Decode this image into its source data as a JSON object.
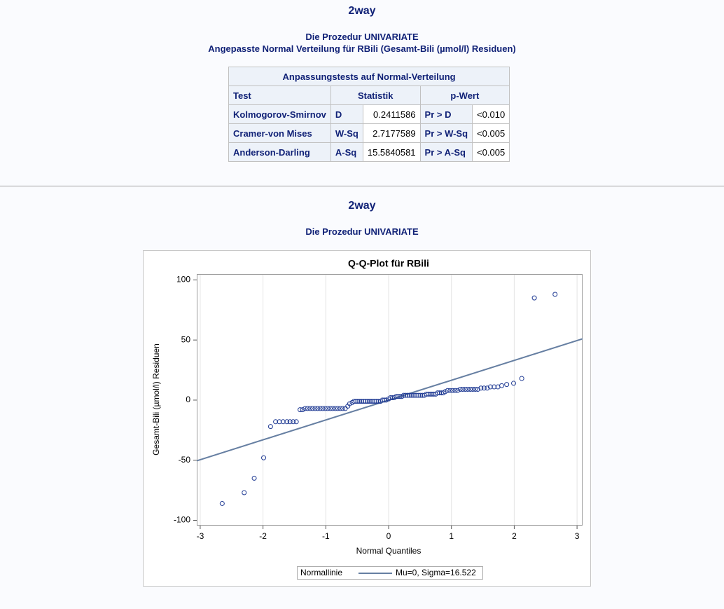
{
  "header": {
    "title": "2way",
    "procedure": "Die Prozedur UNIVARIATE",
    "subtitle": "Angepasste Normal Verteilung für RBili (Gesamt-Bili (µmol/l) Residuen)"
  },
  "table": {
    "title": "Anpassungstests auf Normal-Verteilung",
    "columns": [
      "Test",
      "Statistik",
      "p-Wert"
    ],
    "rows": [
      [
        "Kolmogorov-Smirnov",
        "D",
        "0.2411586",
        "Pr > D",
        "<0.010"
      ],
      [
        "Cramer-von Mises",
        "W-Sq",
        "2.7177589",
        "Pr > W-Sq",
        "<0.005"
      ],
      [
        "Anderson-Darling",
        "A-Sq",
        "15.5840581",
        "Pr > A-Sq",
        "<0.005"
      ]
    ]
  },
  "header2": {
    "title": "2way",
    "procedure": "Die Prozedur UNIVARIATE"
  },
  "chart_data": {
    "type": "scatter",
    "title": "Q-Q-Plot für RBili",
    "x_label": "Normal Quantiles",
    "y_label": "Gesamt-Bili (µmol/l) Residuen",
    "x": [
      -2.65,
      -2.3,
      -2.14,
      -1.99,
      -1.88,
      -1.8,
      -1.74,
      -1.68,
      -1.62,
      -1.57,
      -1.52,
      -1.47,
      -1.41,
      -1.37,
      -1.33,
      -1.29,
      -1.25,
      -1.21,
      -1.17,
      -1.13,
      -1.09,
      -1.05,
      -1.01,
      -0.97,
      -0.93,
      -0.89,
      -0.85,
      -0.81,
      -0.77,
      -0.73,
      -0.69,
      -0.65,
      -0.62,
      -0.58,
      -0.55,
      -0.52,
      -0.49,
      -0.46,
      -0.43,
      -0.4,
      -0.37,
      -0.34,
      -0.31,
      -0.28,
      -0.25,
      -0.22,
      -0.19,
      -0.16,
      -0.13,
      -0.1,
      -0.07,
      -0.04,
      0.0,
      0.03,
      0.06,
      0.09,
      0.12,
      0.15,
      0.18,
      0.21,
      0.24,
      0.27,
      0.3,
      0.33,
      0.36,
      0.39,
      0.42,
      0.45,
      0.48,
      0.51,
      0.54,
      0.57,
      0.6,
      0.63,
      0.66,
      0.69,
      0.72,
      0.75,
      0.78,
      0.81,
      0.84,
      0.87,
      0.9,
      0.94,
      0.98,
      1.02,
      1.06,
      1.1,
      1.14,
      1.18,
      1.22,
      1.26,
      1.3,
      1.34,
      1.38,
      1.42,
      1.47,
      1.52,
      1.57,
      1.62,
      1.68,
      1.74,
      1.8,
      1.88,
      1.99,
      2.12,
      2.32,
      2.65
    ],
    "values": [
      -86,
      -77,
      -65,
      -48,
      -22,
      -18,
      -18,
      -18,
      -18,
      -18,
      -18,
      -18,
      -8,
      -8,
      -7,
      -7,
      -7,
      -7,
      -7,
      -7,
      -7,
      -7,
      -7,
      -7,
      -7,
      -7,
      -7,
      -7,
      -7,
      -7,
      -7,
      -5,
      -3,
      -2,
      -1,
      -1,
      -1,
      -1,
      -1,
      -1,
      -1,
      -1,
      -1,
      -1,
      -1,
      -1,
      -1,
      -1,
      -1,
      0,
      0,
      0,
      1,
      2,
      2,
      2,
      3,
      3,
      3,
      3,
      4,
      4,
      4,
      4,
      4,
      4,
      4,
      4,
      4,
      4,
      4,
      4,
      5,
      5,
      5,
      5,
      5,
      5,
      6,
      6,
      6,
      6,
      7,
      8,
      8,
      8,
      8,
      8,
      9,
      9,
      9,
      9,
      9,
      9,
      9,
      9,
      10,
      10,
      10,
      11,
      11,
      11,
      12,
      13,
      14,
      18,
      85,
      88
    ],
    "color": "#1f3a93",
    "xlim": [
      -3.055,
      3.088
    ],
    "ylim": [
      -104.4,
      104.9
    ],
    "xticks": [
      -3,
      -2,
      -1,
      0,
      1,
      2,
      3
    ],
    "yticks": [
      -100,
      -50,
      0,
      50,
      100
    ],
    "x_grid": true,
    "reference_line": {
      "label": "Mu=0, Sigma=16.522",
      "mu": 0,
      "sigma": 16.522,
      "color": "#667fa2"
    },
    "legend": {
      "title": "Normallinie",
      "position": "bottom"
    }
  }
}
